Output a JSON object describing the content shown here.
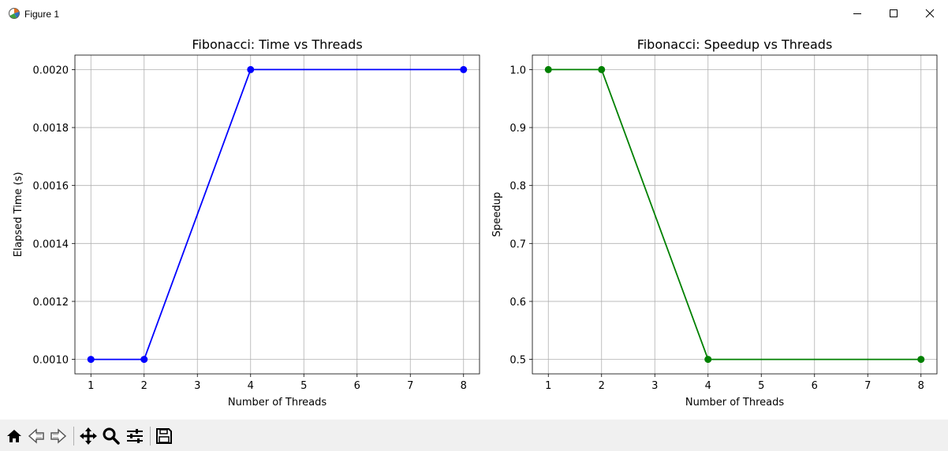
{
  "window": {
    "title": "Figure 1",
    "controls": [
      "minimize",
      "maximize",
      "close"
    ]
  },
  "toolbar": {
    "buttons": [
      "home-icon",
      "back-icon",
      "forward-icon",
      "pan-icon",
      "zoom-icon",
      "configure-subplots-icon",
      "save-icon"
    ]
  },
  "colors": {
    "series_left": "#0000ff",
    "series_right": "#008000",
    "grid": "#b0b0b0",
    "toolbar_bg": "#f0f0f0"
  },
  "chart_data": [
    {
      "type": "line",
      "title": "Fibonacci: Time vs Threads",
      "xlabel": "Number of Threads",
      "ylabel": "Elapsed Time (s)",
      "x": [
        1,
        2,
        4,
        8
      ],
      "y": [
        0.001,
        0.001,
        0.002,
        0.002
      ],
      "xlim": [
        0.7,
        8.3
      ],
      "ylim": [
        0.00095,
        0.00205
      ],
      "xticks": [
        "1",
        "2",
        "3",
        "4",
        "5",
        "6",
        "7",
        "8"
      ],
      "yticks": [
        "0.0010",
        "0.0012",
        "0.0014",
        "0.0016",
        "0.0018",
        "0.0020"
      ],
      "marker": "circle",
      "grid": true
    },
    {
      "type": "line",
      "title": "Fibonacci: Speedup vs Threads",
      "xlabel": "Number of Threads",
      "ylabel": "Speedup",
      "x": [
        1,
        2,
        4,
        8
      ],
      "y": [
        1.0,
        1.0,
        0.5,
        0.5
      ],
      "xlim": [
        0.7,
        8.3
      ],
      "ylim": [
        0.475,
        1.025
      ],
      "xticks": [
        "1",
        "2",
        "3",
        "4",
        "5",
        "6",
        "7",
        "8"
      ],
      "yticks": [
        "0.5",
        "0.6",
        "0.7",
        "0.8",
        "0.9",
        "1.0"
      ],
      "marker": "circle",
      "grid": true
    }
  ]
}
